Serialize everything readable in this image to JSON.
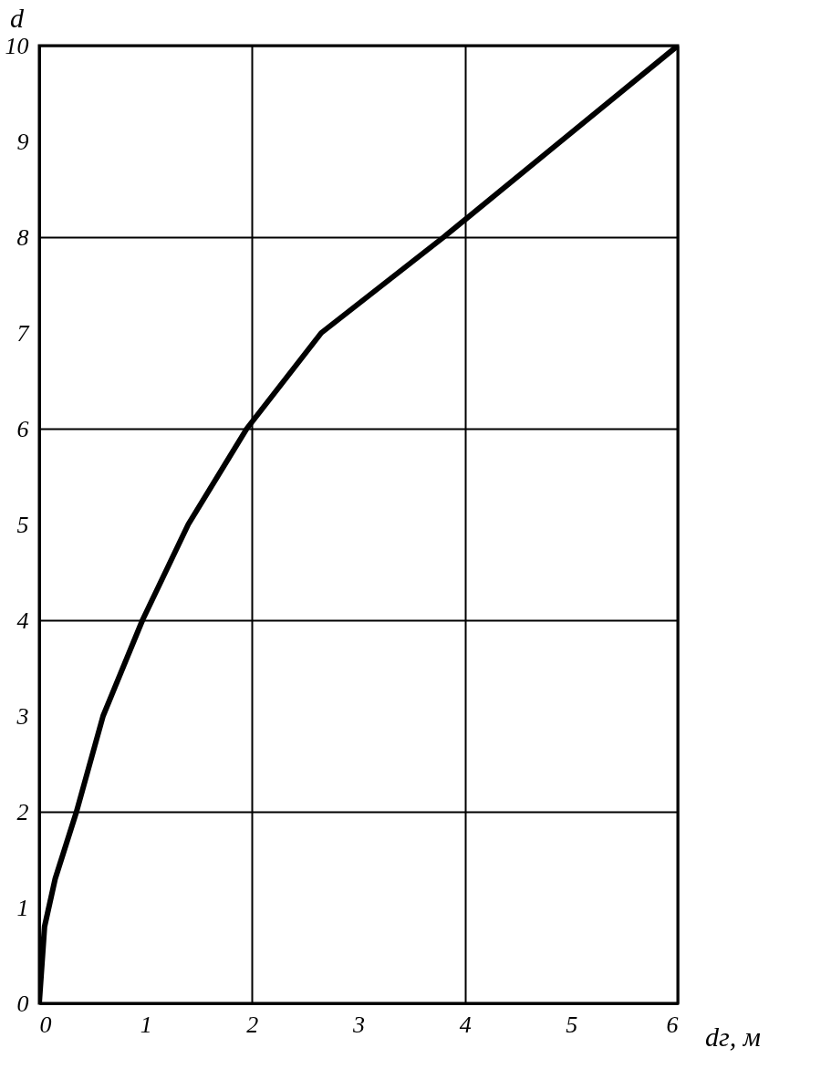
{
  "chart_data": {
    "type": "line",
    "xlabel": "dг, м",
    "ylabel": "d",
    "x": [
      0,
      0.05,
      0.15,
      0.35,
      0.6,
      0.97,
      1.4,
      1.95,
      2.65,
      3.8,
      4.9,
      6
    ],
    "series": [
      {
        "color": "#000000",
        "values": [
          0,
          0.8,
          1.3,
          2,
          3,
          4,
          5,
          6,
          7,
          8,
          9,
          10
        ]
      }
    ],
    "xlim": [
      0,
      6
    ],
    "xticks": [
      0,
      1,
      2,
      3,
      4,
      5,
      6
    ],
    "ylim": [
      0,
      10
    ],
    "yticks": [
      0,
      1,
      2,
      3,
      4,
      5,
      6,
      7,
      8,
      9,
      10
    ],
    "grid": true,
    "marker": "none",
    "line_style": "solid"
  }
}
